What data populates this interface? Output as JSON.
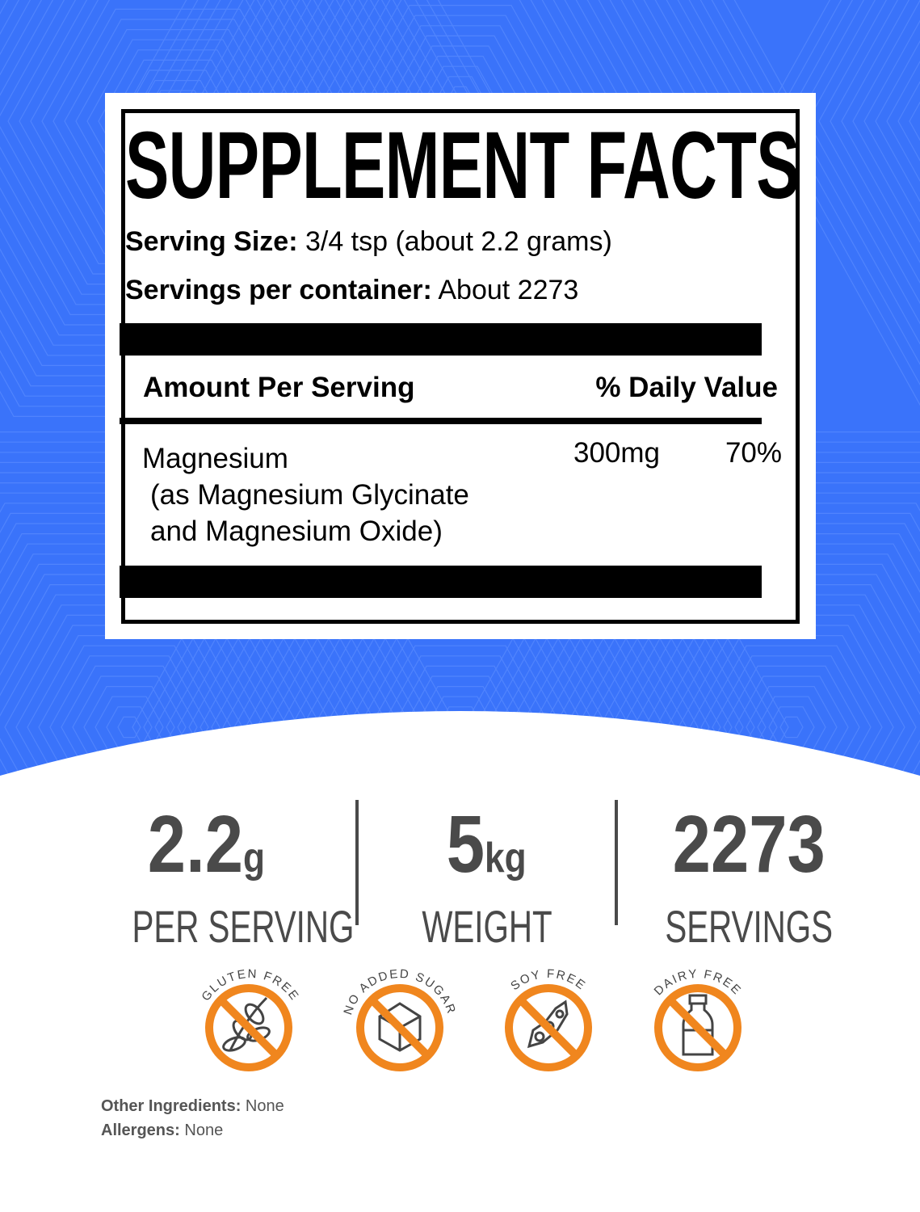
{
  "colors": {
    "background_blue": "#3a73fa",
    "badge_orange": "#f0861e",
    "stat_gray": "#4a4a4a"
  },
  "label": {
    "title": "SUPPLEMENT FACTS",
    "serving_size_label": "Serving Size:",
    "serving_size_value": "3/4 tsp (about 2.2 grams)",
    "servings_per_container_label": "Servings per container:",
    "servings_per_container_value": "About 2273",
    "amount_header": "Amount Per Serving",
    "dv_header": "% Daily Value",
    "nutrient": {
      "name": "Magnesium",
      "source_line1": "(as Magnesium Glycinate",
      "source_line2": "and Magnesium Oxide)",
      "amount": "300mg",
      "dv": "70%"
    }
  },
  "stats": [
    {
      "value": "2.2",
      "unit": "g",
      "label": "PER SERVING"
    },
    {
      "value": "5",
      "unit": "kg",
      "label": "WEIGHT"
    },
    {
      "value": "2273",
      "unit": "",
      "label": "SERVINGS"
    }
  ],
  "badges": [
    {
      "text": "GLUTEN FREE",
      "icon": "wheat-icon"
    },
    {
      "text": "NO ADDED SUGAR",
      "icon": "sugar-cube-icon"
    },
    {
      "text": "SOY FREE",
      "icon": "soybean-icon"
    },
    {
      "text": "DAIRY FREE",
      "icon": "milk-bottle-icon"
    }
  ],
  "footer": {
    "other_label": "Other Ingredients:",
    "other_value": "None",
    "allergens_label": "Allergens:",
    "allergens_value": "None"
  }
}
